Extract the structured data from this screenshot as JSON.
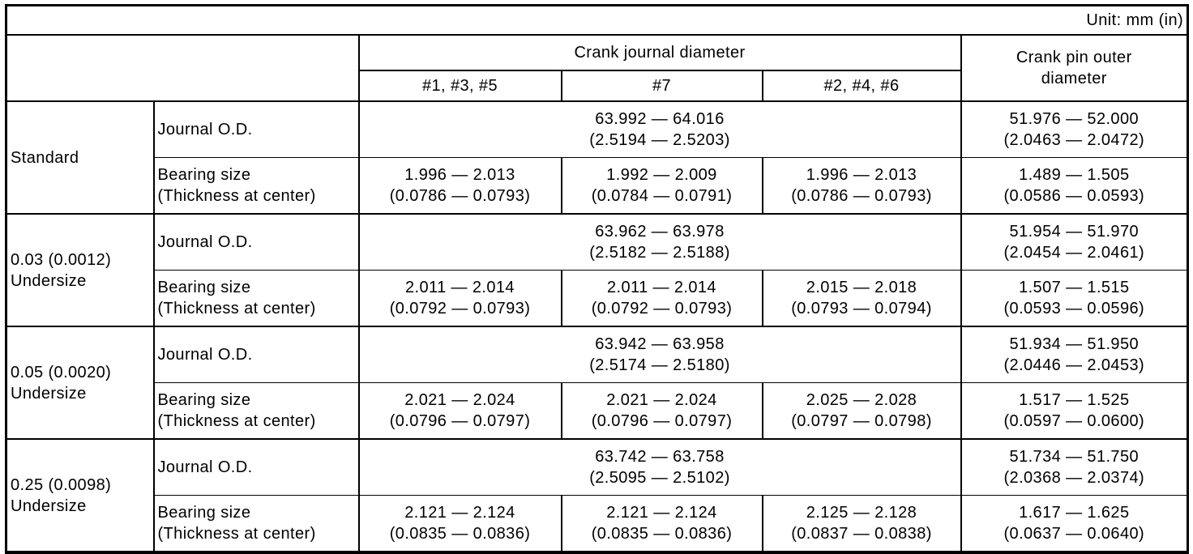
{
  "unit_label": "Unit: mm (in)",
  "colors": {
    "border": "#000000",
    "background": "#ffffff",
    "text": "#000000"
  },
  "header": {
    "crank_journal_diameter": "Crank journal diameter",
    "crank_pin_line1": "Crank pin outer",
    "crank_pin_line2": "diameter",
    "journal_columns": [
      "#1, #3, #5",
      "#7",
      "#2, #4, #6"
    ]
  },
  "row_labels": {
    "journal_od": "Journal O.D.",
    "bearing_line1": "Bearing size",
    "bearing_line2": "(Thickness at center)"
  },
  "sections": [
    {
      "label_line1": "Standard",
      "label_line2": "",
      "journal_od_mm": "63.992 — 64.016",
      "journal_od_in": "(2.5194 — 2.5203)",
      "pin_od_mm": "51.976 — 52.000",
      "pin_od_in": "(2.0463 — 2.0472)",
      "bearing_135_mm": "1.996 — 2.013",
      "bearing_135_in": "(0.0786 — 0.0793)",
      "bearing_7_mm": "1.992 — 2.009",
      "bearing_7_in": "(0.0784 — 0.0791)",
      "bearing_246_mm": "1.996 — 2.013",
      "bearing_246_in": "(0.0786 — 0.0793)",
      "pin_bearing_mm": "1.489 — 1.505",
      "pin_bearing_in": "(0.0586 — 0.0593)"
    },
    {
      "label_line1": "0.03 (0.0012)",
      "label_line2": "Undersize",
      "journal_od_mm": "63.962 — 63.978",
      "journal_od_in": "(2.5182 — 2.5188)",
      "pin_od_mm": "51.954 — 51.970",
      "pin_od_in": "(2.0454 — 2.0461)",
      "bearing_135_mm": "2.011 — 2.014",
      "bearing_135_in": "(0.0792 — 0.0793)",
      "bearing_7_mm": "2.011 — 2.014",
      "bearing_7_in": "(0.0792 — 0.0793)",
      "bearing_246_mm": "2.015 — 2.018",
      "bearing_246_in": "(0.0793 — 0.0794)",
      "pin_bearing_mm": "1.507 — 1.515",
      "pin_bearing_in": "(0.0593 — 0.0596)"
    },
    {
      "label_line1": "0.05 (0.0020)",
      "label_line2": "Undersize",
      "journal_od_mm": "63.942 — 63.958",
      "journal_od_in": "(2.5174 — 2.5180)",
      "pin_od_mm": "51.934 — 51.950",
      "pin_od_in": "(2.0446 — 2.0453)",
      "bearing_135_mm": "2.021 — 2.024",
      "bearing_135_in": "(0.0796 — 0.0797)",
      "bearing_7_mm": "2.021 — 2.024",
      "bearing_7_in": "(0.0796 — 0.0797)",
      "bearing_246_mm": "2.025 — 2.028",
      "bearing_246_in": "(0.0797 — 0.0798)",
      "pin_bearing_mm": "1.517 — 1.525",
      "pin_bearing_in": "(0.0597 — 0.0600)"
    },
    {
      "label_line1": "0.25 (0.0098)",
      "label_line2": "Undersize",
      "journal_od_mm": "63.742 — 63.758",
      "journal_od_in": "(2.5095 — 2.5102)",
      "pin_od_mm": "51.734 — 51.750",
      "pin_od_in": "(2.0368 — 2.0374)",
      "bearing_135_mm": "2.121 — 2.124",
      "bearing_135_in": "(0.0835 — 0.0836)",
      "bearing_7_mm": "2.121 — 2.124",
      "bearing_7_in": "(0.0835 — 0.0836)",
      "bearing_246_mm": "2.125 — 2.128",
      "bearing_246_in": "(0.0837 — 0.0838)",
      "pin_bearing_mm": "1.617 — 1.625",
      "pin_bearing_in": "(0.0637 — 0.0640)"
    }
  ]
}
